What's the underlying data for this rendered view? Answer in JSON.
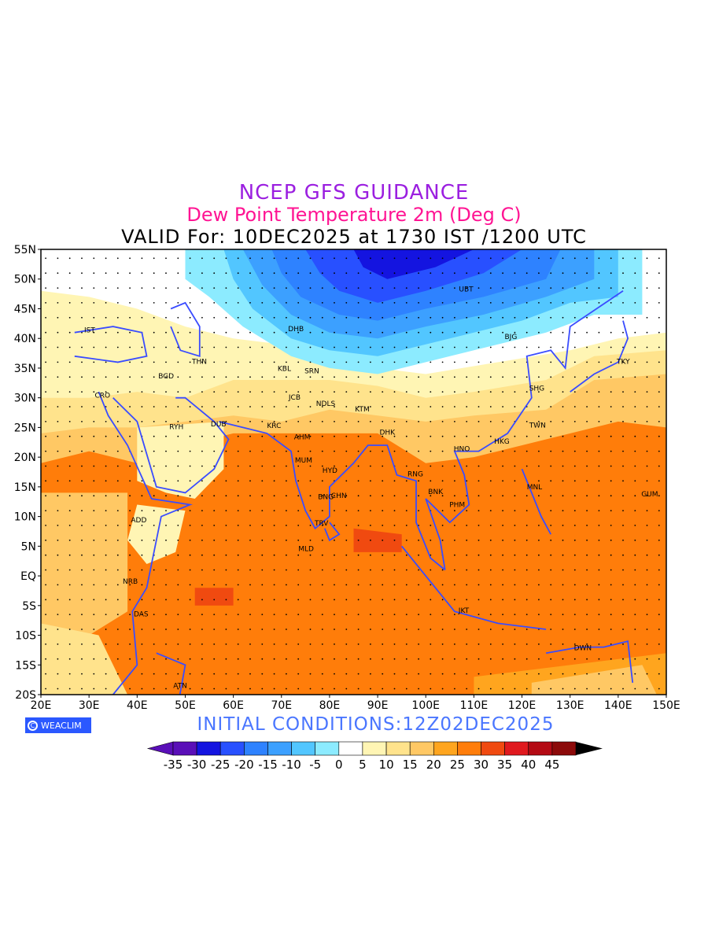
{
  "titles": {
    "line1": "NCEP GFS GUIDANCE",
    "line2": "Dew Point Temperature 2m (Deg C)",
    "line3": "VALID For: 10DEC2025 at 1730 IST /1200 UTC"
  },
  "initial_conditions": "INITIAL CONDITIONS:12Z02DEC2025",
  "logo_text": "WEACLIM",
  "map": {
    "lat_labels": [
      "55N",
      "50N",
      "45N",
      "40N",
      "35N",
      "30N",
      "25N",
      "20N",
      "15N",
      "10N",
      "5N",
      "EQ",
      "5S",
      "10S",
      "15S",
      "20S"
    ],
    "lon_labels": [
      "20E",
      "30E",
      "40E",
      "50E",
      "60E",
      "70E",
      "80E",
      "90E",
      "100E",
      "110E",
      "120E",
      "130E",
      "140E",
      "150E"
    ],
    "lat_range": [
      -20,
      55
    ],
    "lon_range": [
      20,
      150
    ],
    "stations": [
      {
        "code": "NRB",
        "lon": 37,
        "lat": -1.3
      },
      {
        "code": "ADD",
        "lon": 38.7,
        "lat": 9.0
      },
      {
        "code": "DAS",
        "lon": 39.3,
        "lat": -6.8
      },
      {
        "code": "ATN",
        "lon": 47.5,
        "lat": -18.9
      },
      {
        "code": "RYH",
        "lon": 46.7,
        "lat": 24.7
      },
      {
        "code": "DUB",
        "lon": 55.3,
        "lat": 25.2
      },
      {
        "code": "BGD",
        "lon": 44.4,
        "lat": 33.3
      },
      {
        "code": "CRO",
        "lon": 31.2,
        "lat": 30.0
      },
      {
        "code": "IST",
        "lon": 29.0,
        "lat": 41.0
      },
      {
        "code": "THN",
        "lon": 51.4,
        "lat": 35.7
      },
      {
        "code": "KRC",
        "lon": 67.0,
        "lat": 24.9
      },
      {
        "code": "AHM",
        "lon": 72.6,
        "lat": 23.0
      },
      {
        "code": "MUM",
        "lon": 72.8,
        "lat": 19.1
      },
      {
        "code": "HYD",
        "lon": 78.5,
        "lat": 17.4
      },
      {
        "code": "BNG",
        "lon": 77.6,
        "lat": 12.9
      },
      {
        "code": "TRV",
        "lon": 76.9,
        "lat": 8.5
      },
      {
        "code": "MLD",
        "lon": 73.5,
        "lat": 4.2
      },
      {
        "code": "NDLS",
        "lon": 77.2,
        "lat": 28.6
      },
      {
        "code": "KTM",
        "lon": 85.3,
        "lat": 27.7
      },
      {
        "code": "DHB",
        "lon": 71.4,
        "lat": 41.2
      },
      {
        "code": "JCB",
        "lon": 71.5,
        "lat": 29.7
      },
      {
        "code": "KBL",
        "lon": 69.2,
        "lat": 34.5
      },
      {
        "code": "SRN",
        "lon": 74.8,
        "lat": 34.1
      },
      {
        "code": "CHN",
        "lon": 80.3,
        "lat": 13.1
      },
      {
        "code": "DHK",
        "lon": 90.4,
        "lat": 23.8
      },
      {
        "code": "RNG",
        "lon": 96.2,
        "lat": 16.8
      },
      {
        "code": "BNK",
        "lon": 100.5,
        "lat": 13.8
      },
      {
        "code": "HNO",
        "lon": 105.8,
        "lat": 21.0
      },
      {
        "code": "HKG",
        "lon": 114.2,
        "lat": 22.3
      },
      {
        "code": "PHM",
        "lon": 104.9,
        "lat": 11.6
      },
      {
        "code": "MNL",
        "lon": 121.0,
        "lat": 14.6
      },
      {
        "code": "TWN",
        "lon": 121.5,
        "lat": 25.0
      },
      {
        "code": "SHG",
        "lon": 121.5,
        "lat": 31.2
      },
      {
        "code": "BJG",
        "lon": 116.4,
        "lat": 39.9
      },
      {
        "code": "TKY",
        "lon": 139.7,
        "lat": 35.7
      },
      {
        "code": "UBT",
        "lon": 106.9,
        "lat": 47.9
      },
      {
        "code": "GUM",
        "lon": 144.8,
        "lat": 13.4
      },
      {
        "code": "JKT",
        "lon": 106.8,
        "lat": -6.2
      },
      {
        "code": "DWN",
        "lon": 130.8,
        "lat": -12.5
      }
    ]
  },
  "colorbar": {
    "labels": [
      "-35",
      "-30",
      "-25",
      "-20",
      "-15",
      "-10",
      "-5",
      "0",
      "5",
      "10",
      "15",
      "20",
      "25",
      "30",
      "35",
      "40",
      "45"
    ],
    "colors": [
      "#5a0fb8",
      "#1414e0",
      "#2850ff",
      "#2e82ff",
      "#3ca0ff",
      "#52c6ff",
      "#8cebff",
      "#ffffff",
      "#fff5b4",
      "#ffe38c",
      "#ffc864",
      "#ffa51e",
      "#ff7d0a",
      "#f04a10",
      "#e0191e",
      "#b40a14",
      "#8c0a0a"
    ]
  }
}
